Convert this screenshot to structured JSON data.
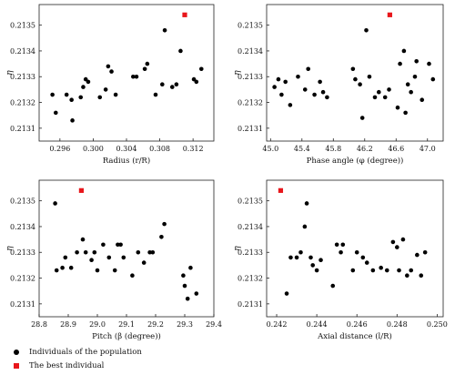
{
  "legend": {
    "population_label": "Individuals of the population",
    "best_label": "The best individual"
  },
  "colors": {
    "population": "#000000",
    "best": "#e8161b",
    "axis": "#222222"
  },
  "chart_data": [
    {
      "type": "scatter",
      "xlabel": "Radius (r/R)",
      "ylabel": "η",
      "xlim": [
        0.2935,
        0.3145
      ],
      "ylim": [
        0.21305,
        0.21358
      ],
      "xticks": [
        0.296,
        0.3,
        0.304,
        0.308,
        0.312
      ],
      "xtick_labels": [
        "0.296",
        "0.300",
        "0.304",
        "0.308",
        "0.312"
      ],
      "yticks": [
        0.2131,
        0.2132,
        0.2133,
        0.2134,
        0.2135
      ],
      "ytick_labels": [
        "0.2131",
        "0.2132",
        "0.2133",
        "0.2134",
        "0.2135"
      ],
      "series": [
        {
          "name": "Individuals of the population",
          "x": [
            0.2951,
            0.2955,
            0.2968,
            0.2974,
            0.2975,
            0.2985,
            0.2988,
            0.2991,
            0.2994,
            0.3008,
            0.3015,
            0.3018,
            0.3022,
            0.3027,
            0.3048,
            0.3052,
            0.3062,
            0.3065,
            0.3075,
            0.3083,
            0.3086,
            0.3095,
            0.31,
            0.3105,
            0.3121,
            0.3124,
            0.313
          ],
          "y": [
            0.21323,
            0.21316,
            0.21323,
            0.21321,
            0.21313,
            0.21322,
            0.21326,
            0.21329,
            0.21328,
            0.21322,
            0.21325,
            0.21334,
            0.21332,
            0.21323,
            0.2133,
            0.2133,
            0.21333,
            0.21335,
            0.21323,
            0.21327,
            0.21348,
            0.21326,
            0.21327,
            0.2134,
            0.21329,
            0.21328,
            0.21333
          ]
        },
        {
          "name": "The best individual",
          "x": [
            0.311
          ],
          "y": [
            0.21354
          ]
        }
      ]
    },
    {
      "type": "scatter",
      "xlabel": "Phase angle (φ (degree))",
      "ylabel": "η",
      "xlim": [
        44.95,
        47.2
      ],
      "ylim": [
        0.21305,
        0.21358
      ],
      "xticks": [
        45.0,
        45.4,
        45.8,
        46.2,
        46.6,
        47.0
      ],
      "xtick_labels": [
        "45.0",
        "45.4",
        "45.8",
        "46.2",
        "46.6",
        "47.0"
      ],
      "yticks": [
        0.2131,
        0.2132,
        0.2133,
        0.2134,
        0.2135
      ],
      "ytick_labels": [
        "0.2131",
        "0.2132",
        "0.2133",
        "0.2134",
        "0.2135"
      ],
      "series": [
        {
          "name": "Individuals of the population",
          "x": [
            45.05,
            45.1,
            45.14,
            45.19,
            45.25,
            45.35,
            45.44,
            45.48,
            45.56,
            45.63,
            45.67,
            45.72,
            46.05,
            46.08,
            46.14,
            46.17,
            46.22,
            46.26,
            46.33,
            46.38,
            46.46,
            46.51,
            46.62,
            46.65,
            46.7,
            46.72,
            46.75,
            46.79,
            46.84,
            46.86,
            46.93,
            47.02,
            47.07
          ],
          "y": [
            0.21326,
            0.21329,
            0.21323,
            0.21328,
            0.21319,
            0.2133,
            0.21325,
            0.21333,
            0.21323,
            0.21328,
            0.21324,
            0.21322,
            0.21333,
            0.21329,
            0.21327,
            0.21314,
            0.21348,
            0.2133,
            0.21322,
            0.21324,
            0.21322,
            0.21325,
            0.21318,
            0.21335,
            0.2134,
            0.21316,
            0.21327,
            0.21324,
            0.2133,
            0.21336,
            0.21321,
            0.21335,
            0.21329
          ]
        },
        {
          "name": "The best individual",
          "x": [
            46.52
          ],
          "y": [
            0.21354
          ]
        }
      ]
    },
    {
      "type": "scatter",
      "xlabel": "Pitch (β (degree))",
      "ylabel": "η",
      "xlim": [
        28.8,
        29.4
      ],
      "ylim": [
        0.21305,
        0.21358
      ],
      "xticks": [
        28.8,
        28.9,
        29.0,
        29.1,
        29.2,
        29.3,
        29.4
      ],
      "xtick_labels": [
        "28.8",
        "28.9",
        "29.0",
        "29.1",
        "29.2",
        "29.3",
        "29.4"
      ],
      "yticks": [
        0.2131,
        0.2132,
        0.2133,
        0.2134,
        0.2135
      ],
      "ytick_labels": [
        "0.2131",
        "0.2132",
        "0.2133",
        "0.2134",
        "0.2135"
      ],
      "series": [
        {
          "name": "Individuals of the population",
          "x": [
            28.855,
            28.86,
            28.88,
            28.89,
            28.91,
            28.93,
            28.95,
            28.96,
            28.98,
            28.99,
            29.0,
            29.02,
            29.04,
            29.06,
            29.07,
            29.08,
            29.09,
            29.12,
            29.14,
            29.16,
            29.18,
            29.19,
            29.22,
            29.23,
            29.295,
            29.3,
            29.31,
            29.32,
            29.34
          ],
          "y": [
            0.21349,
            0.21323,
            0.21324,
            0.21328,
            0.21324,
            0.2133,
            0.21335,
            0.2133,
            0.21327,
            0.2133,
            0.21323,
            0.21333,
            0.21328,
            0.21323,
            0.21333,
            0.21333,
            0.21328,
            0.21321,
            0.2133,
            0.21326,
            0.2133,
            0.2133,
            0.21336,
            0.21341,
            0.21321,
            0.21317,
            0.21312,
            0.21324,
            0.21314
          ]
        },
        {
          "name": "The best individual",
          "x": [
            28.945
          ],
          "y": [
            0.21354
          ]
        }
      ]
    },
    {
      "type": "scatter",
      "xlabel": "Axial distance (l/R)",
      "ylabel": "η",
      "xlim": [
        0.2415,
        0.2503
      ],
      "ylim": [
        0.21305,
        0.21358
      ],
      "xticks": [
        0.242,
        0.244,
        0.246,
        0.248,
        0.25
      ],
      "xtick_labels": [
        "0.242",
        "0.244",
        "0.246",
        "0.248",
        "0.250"
      ],
      "yticks": [
        0.2131,
        0.2132,
        0.2133,
        0.2134,
        0.2135
      ],
      "ytick_labels": [
        "0.2131",
        "0.2132",
        "0.2133",
        "0.2134",
        "0.2135"
      ],
      "series": [
        {
          "name": "Individuals of the population",
          "x": [
            0.2425,
            0.2427,
            0.243,
            0.2432,
            0.2434,
            0.2435,
            0.2437,
            0.2438,
            0.244,
            0.2442,
            0.2448,
            0.245,
            0.2452,
            0.2453,
            0.2458,
            0.246,
            0.2463,
            0.2465,
            0.2468,
            0.2472,
            0.2475,
            0.2478,
            0.248,
            0.2481,
            0.2483,
            0.2485,
            0.2487,
            0.249,
            0.2492,
            0.2494
          ],
          "y": [
            0.21314,
            0.21328,
            0.21328,
            0.2133,
            0.2134,
            0.21349,
            0.21328,
            0.21325,
            0.21323,
            0.21327,
            0.21317,
            0.21333,
            0.2133,
            0.21333,
            0.21323,
            0.2133,
            0.21328,
            0.21326,
            0.21323,
            0.21324,
            0.21323,
            0.21334,
            0.21332,
            0.21323,
            0.21335,
            0.21321,
            0.21323,
            0.21329,
            0.21321,
            0.2133
          ]
        },
        {
          "name": "The best individual",
          "x": [
            0.2422
          ],
          "y": [
            0.21354
          ]
        }
      ]
    }
  ]
}
